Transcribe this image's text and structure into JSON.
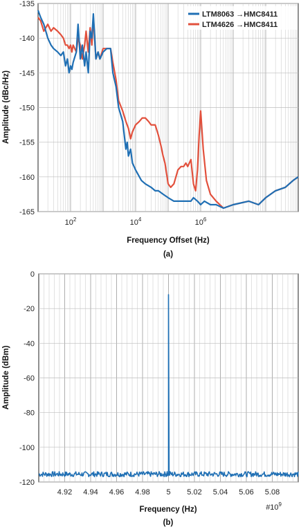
{
  "chart_data": [
    {
      "type": "line",
      "caption": "(a)",
      "xlabel": "Frequency Offset (Hz)",
      "ylabel": "Amplitude (dBc/Hz)",
      "xscale": "log",
      "xlim": [
        10,
        1000000000
      ],
      "ylim": [
        -165,
        -135
      ],
      "x_ticks": [
        {
          "value": 100,
          "base": "10",
          "exp": "2"
        },
        {
          "value": 10000,
          "base": "10",
          "exp": "4"
        },
        {
          "value": 1000000,
          "base": "10",
          "exp": "6"
        }
      ],
      "y_ticks": [
        {
          "value": -135,
          "label": "-135"
        },
        {
          "value": -140,
          "label": "-140"
        },
        {
          "value": -145,
          "label": "-145"
        },
        {
          "value": -150,
          "label": "-150"
        },
        {
          "value": -155,
          "label": "-155"
        },
        {
          "value": -160,
          "label": "-160"
        },
        {
          "value": -165,
          "label": "-165"
        }
      ],
      "grid": true,
      "legend_position": "top-right",
      "series": [
        {
          "name": "LTM8063 →HMC8411",
          "color": "#1f6fb4",
          "x": [
            10,
            12,
            15,
            20,
            25,
            30,
            40,
            50,
            60,
            70,
            80,
            90,
            100,
            110,
            120,
            150,
            170,
            200,
            230,
            270,
            300,
            350,
            400,
            450,
            500,
            600,
            700,
            800,
            1000,
            1300,
            1700,
            2000,
            2500,
            3000,
            4000,
            5000,
            5500,
            6000,
            7000,
            8000,
            10000,
            15000,
            20000,
            30000,
            40000,
            50000,
            70000,
            100000,
            150000,
            200000,
            250000,
            300000,
            400000,
            500000,
            600000,
            800000,
            1000000,
            1300000,
            2000000,
            3000000,
            5000000,
            10000000,
            30000000,
            60000000,
            100000000,
            200000000,
            400000000,
            700000000,
            1000000000
          ],
          "y": [
            -136,
            -137,
            -138,
            -140,
            -141,
            -141.5,
            -142,
            -142.5,
            -142,
            -144,
            -143,
            -145,
            -144,
            -144.5,
            -143.5,
            -142,
            -138,
            -143,
            -141,
            -144,
            -142,
            -145,
            -139,
            -140,
            -136.5,
            -143,
            -142,
            -143,
            -142,
            -141.5,
            -141.5,
            -145,
            -147,
            -150,
            -152,
            -156,
            -155,
            -157,
            -156,
            -158,
            -159,
            -160.5,
            -161,
            -161.5,
            -162,
            -162,
            -162.5,
            -163,
            -163.5,
            -163.5,
            -163.5,
            -163.5,
            -163.5,
            -163.5,
            -163,
            -163.5,
            -164,
            -163.5,
            -164,
            -164,
            -164.5,
            -164,
            -163.5,
            -164,
            -163,
            -162,
            -161.5,
            -160.5,
            -160
          ]
        },
        {
          "name": "LTM4626 →HMC8411",
          "color": "#e2503c",
          "x": [
            10,
            12,
            15,
            20,
            25,
            30,
            40,
            50,
            60,
            70,
            80,
            90,
            100,
            110,
            120,
            150,
            170,
            200,
            230,
            270,
            300,
            350,
            400,
            450,
            500,
            600,
            700,
            800,
            1000,
            1300,
            1700,
            2000,
            2500,
            3000,
            4000,
            5000,
            6000,
            7000,
            8000,
            10000,
            13000,
            16000,
            20000,
            25000,
            30000,
            40000,
            50000,
            60000,
            70000,
            80000,
            100000,
            120000,
            150000,
            200000,
            250000,
            300000,
            350000,
            400000,
            500000,
            600000,
            700000,
            800000,
            900000,
            1000000,
            1200000,
            1500000,
            2000000,
            3000000,
            5000000,
            10000000,
            30000000,
            60000000,
            100000000,
            200000000,
            400000000,
            700000000,
            1000000000
          ],
          "y": [
            -137,
            -137.5,
            -139,
            -138,
            -139,
            -138.5,
            -139,
            -139.5,
            -140,
            -141,
            -141,
            -141.5,
            -141,
            -142,
            -141,
            -142,
            -140,
            -141,
            -143,
            -141,
            -139,
            -142,
            -138.5,
            -141,
            -137,
            -143,
            -142,
            -143,
            -141.5,
            -141.5,
            -141.5,
            -143.5,
            -146,
            -149,
            -150.5,
            -152,
            -153,
            -154.5,
            -153.5,
            -152.5,
            -152,
            -151.5,
            -151.5,
            -152,
            -152.5,
            -152.5,
            -154,
            -155.5,
            -157,
            -158,
            -161,
            -161.5,
            -161,
            -159,
            -158.5,
            -158.5,
            -158,
            -158.5,
            -157.5,
            -161,
            -162,
            -159,
            -154,
            -150.5,
            -156,
            -160.5,
            -162.5,
            -163.5,
            -164.5,
            -164,
            -163.5,
            -164,
            -163,
            -162,
            -161.5,
            -160.5,
            -160
          ]
        }
      ]
    },
    {
      "type": "line",
      "caption": "(b)",
      "xlabel": "Frequency (Hz)",
      "ylabel": "Amplitude (dBm)",
      "xlim": [
        4.9,
        5.1
      ],
      "ylim": [
        -120,
        0
      ],
      "x_multiplier": {
        "base": "#10",
        "exp": "9"
      },
      "x_ticks": [
        {
          "value": 4.92,
          "label": "4.92"
        },
        {
          "value": 4.94,
          "label": "4.94"
        },
        {
          "value": 4.96,
          "label": "4.96"
        },
        {
          "value": 4.98,
          "label": "4.98"
        },
        {
          "value": 5.0,
          "label": "5"
        },
        {
          "value": 5.02,
          "label": "5.02"
        },
        {
          "value": 5.04,
          "label": "5.04"
        },
        {
          "value": 5.06,
          "label": "5.06"
        },
        {
          "value": 5.08,
          "label": "5.08"
        }
      ],
      "y_ticks": [
        {
          "value": 0,
          "label": "0"
        },
        {
          "value": -20,
          "label": "-20"
        },
        {
          "value": -40,
          "label": "-40"
        },
        {
          "value": -60,
          "label": "-60"
        },
        {
          "value": -80,
          "label": "-80"
        },
        {
          "value": -100,
          "label": "-100"
        },
        {
          "value": -120,
          "label": "-120"
        }
      ],
      "grid": true,
      "series": [
        {
          "color": "#1f6fb4",
          "x": [
            4.9,
            4.92,
            4.94,
            4.96,
            4.98,
            4.995,
            4.999,
            5.0,
            5.001,
            5.005,
            5.02,
            5.04,
            5.06,
            5.08,
            5.1
          ],
          "y": [
            -115,
            -115.5,
            -115,
            -116,
            -115.5,
            -115,
            -114,
            -12,
            -114,
            -115,
            -115,
            -115.5,
            -115,
            -115.5,
            -115.5
          ],
          "noise_level": -115.5,
          "noise_band_db": 1.5
        }
      ]
    }
  ]
}
